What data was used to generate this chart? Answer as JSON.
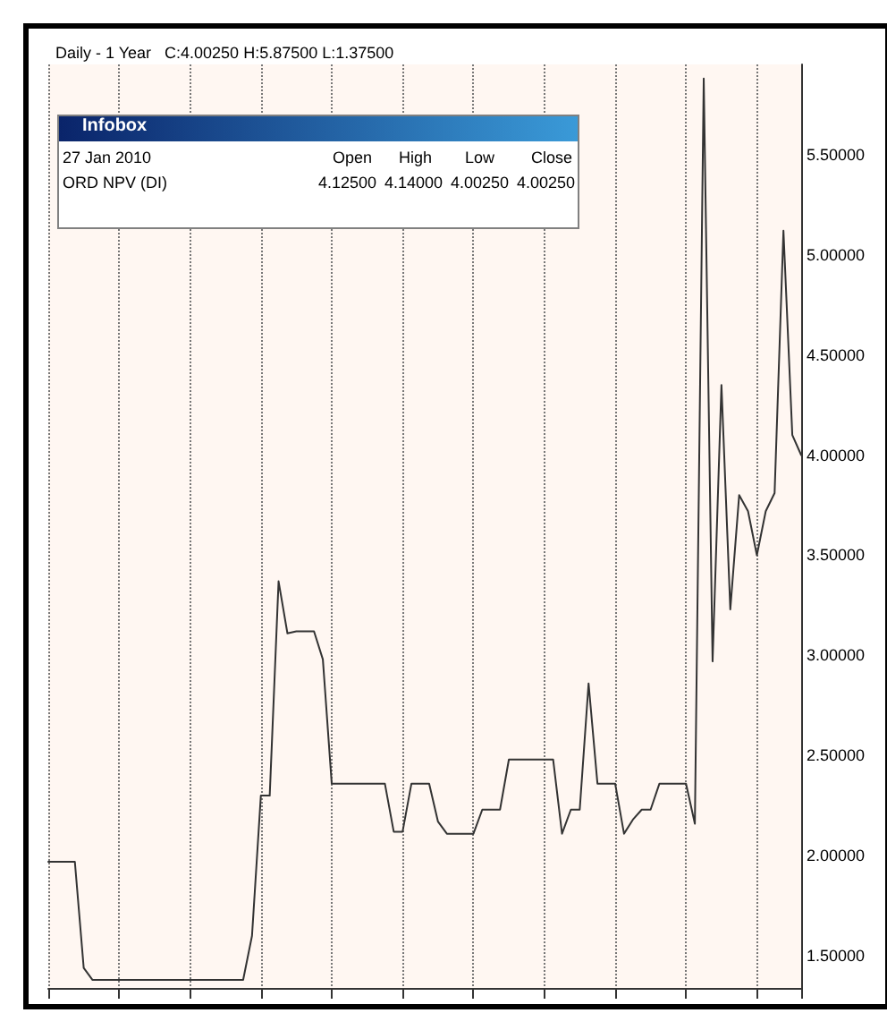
{
  "chart_data": {
    "type": "line",
    "title": "Daily - 1 Year   C:4.00250 H:5.87500 L:1.37500",
    "annotations": [
      "Infobox",
      "27 Jan 2010",
      "Open",
      "High",
      "Low",
      "Close",
      "ORD NPV (DI)",
      "4.12500",
      "4.14000",
      "4.00250",
      "4.00250"
    ],
    "categories": [
      null,
      null,
      null,
      null,
      null,
      null,
      null,
      null,
      null,
      null,
      null,
      null,
      null,
      null,
      null,
      null,
      null,
      null,
      null,
      null,
      null,
      null,
      null,
      null,
      null,
      null,
      null,
      null,
      null,
      null,
      null,
      null,
      null,
      null,
      null,
      null,
      null,
      null,
      null,
      null,
      null,
      null,
      null,
      null,
      null,
      null,
      null,
      null,
      null,
      null,
      null,
      null,
      null,
      null,
      null,
      null,
      null,
      null,
      null,
      null,
      null,
      null,
      null,
      null,
      null,
      null,
      null,
      null,
      null,
      null,
      null,
      null,
      null,
      null,
      null,
      null,
      null,
      null,
      null,
      null,
      null,
      null,
      null,
      null,
      null,
      null
    ],
    "series": [
      {
        "color": "#333333",
        "values": [
          1.97,
          1.97,
          1.97,
          1.97,
          1.44,
          1.38,
          1.38,
          1.38,
          1.38,
          1.38,
          1.38,
          1.38,
          1.38,
          1.38,
          1.38,
          1.38,
          1.38,
          1.38,
          1.38,
          1.38,
          1.38,
          1.38,
          1.38,
          1.6,
          2.3,
          2.3,
          3.37,
          3.11,
          3.12,
          3.12,
          3.12,
          2.98,
          2.36,
          2.36,
          2.36,
          2.36,
          2.36,
          2.36,
          2.36,
          2.12,
          2.12,
          2.36,
          2.36,
          2.36,
          2.17,
          2.11,
          2.11,
          2.11,
          2.11,
          2.23,
          2.23,
          2.23,
          2.48,
          2.48,
          2.48,
          2.48,
          2.48,
          2.48,
          2.11,
          2.23,
          2.23,
          2.86,
          2.36,
          2.36,
          2.36,
          2.11,
          2.18,
          2.23,
          2.23,
          2.36,
          2.36,
          2.36,
          2.36,
          2.16,
          5.88,
          2.97,
          4.35,
          3.23,
          3.8,
          3.72,
          3.5,
          3.72,
          3.81,
          5.12,
          4.1,
          4.0
        ]
      }
    ],
    "ylim": [
      1.34,
      5.95
    ],
    "yticks": [
      {
        "value": 1.5,
        "label": "1.50000"
      },
      {
        "value": 2,
        "label": "2.00000"
      },
      {
        "value": 2.5,
        "label": "2.50000"
      },
      {
        "value": 3,
        "label": "3.00000"
      },
      {
        "value": 3.5,
        "label": "3.50000"
      },
      {
        "value": 4,
        "label": "4.00000"
      },
      {
        "value": 4.5,
        "label": "4.50000"
      },
      {
        "value": 5,
        "label": "5.00000"
      },
      {
        "value": 5.5,
        "label": "5.50000"
      }
    ],
    "tick_labels": "y",
    "grid": "x",
    "line_style": "solid"
  }
}
